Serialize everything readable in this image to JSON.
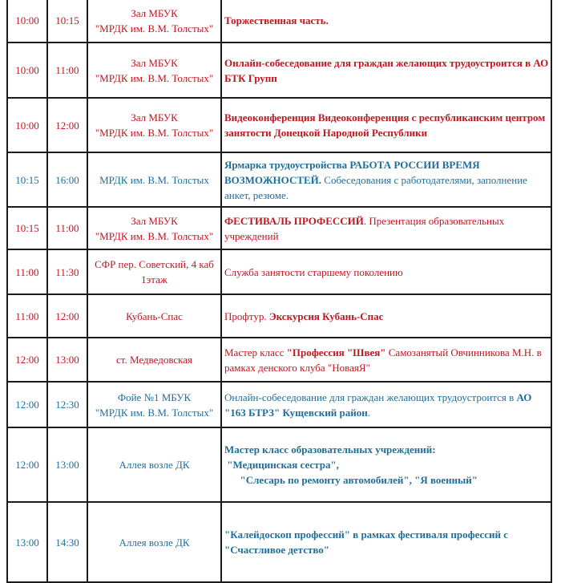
{
  "colors": {
    "red": "#c0161f",
    "blue": "#1f6e98",
    "border": "#1a1a1a"
  },
  "rows": [
    {
      "start": "10:00",
      "end": "10:15",
      "place": "Зал МБУК\n\"МРДК им. В.М. Толстых\"",
      "color": "red",
      "height": 55,
      "description": [
        {
          "text": "Торжественная часть.",
          "bold": true
        }
      ]
    },
    {
      "start": "10:00",
      "end": "11:00",
      "place": "Зал МБУК\n\"МРДК им. В.М. Толстых\"",
      "color": "red",
      "height": 69,
      "description": [
        {
          "text": "Онлайн-собеседование для граждан желающих трудоустроится в АО БТК Групп",
          "bold": true
        }
      ]
    },
    {
      "start": "10:00",
      "end": "12:00",
      "place": "Зал МБУК\n\"МРДК им. В.М. Толстых\"",
      "color": "red",
      "height": 68,
      "description": [
        {
          "text": "Видеоконференция Видеоконференция с республиканским центром занятости Донецкой Народной Республики",
          "bold": true
        }
      ]
    },
    {
      "start": "10:15",
      "end": "16:00",
      "place": "МРДК им. В.М. Толстых",
      "color": "blue",
      "height": 68,
      "description": [
        {
          "text": "Ярмарка трудоустройства РАБОТА РОССИИ ВРЕМЯ ВОЗМОЖНОСТЕЙ.",
          "bold": true
        },
        {
          "text": " Собеседования с работодателями, заполнение анкет, резюме.",
          "bold": false
        }
      ]
    },
    {
      "start": "10:15",
      "end": "11:00",
      "place": "Зал МБУК\n\"МРДК им. В.М. Толстых\"",
      "color": "red",
      "height": 53,
      "description": [
        {
          "text": "ФЕСТИВАЛЬ ПРОФЕССИЙ",
          "bold": true
        },
        {
          "text": ". Презентация образовательных учреждений",
          "bold": false
        }
      ]
    },
    {
      "start": "11:00",
      "end": "11:30",
      "place": "СФР пер. Советский, 4 каб\n1этаж",
      "color": "red",
      "height": 56,
      "description": [
        {
          "text": "Служба занятости старшему поколению",
          "bold": false
        }
      ]
    },
    {
      "start": "11:00",
      "end": "12:00",
      "place": "Кубань-Спас",
      "color": "red",
      "height": 54,
      "description": [
        {
          "text": "Профтур. ",
          "bold": false
        },
        {
          "text": "Экскурсия  Кубань-Спас",
          "bold": true
        }
      ]
    },
    {
      "start": "12:00",
      "end": "13:00",
      "place": "ст. Медведовская",
      "color": "red",
      "height": 55,
      "description": [
        {
          "text": "Мастер класс ",
          "bold": false
        },
        {
          "text": "\"Профессия \"Швея\"",
          "bold": true
        },
        {
          "text": " Самозанятый Овчинникова М.Н. в рамках денского клуба \"НоваяЯ\"",
          "bold": false
        }
      ]
    },
    {
      "start": "12:00",
      "end": "12:30",
      "place": "Фойе №1 МБУК\n\"МРДК им. В.М. Толстых\"",
      "color": "blue",
      "height": 57,
      "description": [
        {
          "text": "Онлайн-собеседование для граждан желающих трудоустроится в ",
          "bold": false
        },
        {
          "text": "АО \"163 БТРЗ\" Кущевский район",
          "bold": true
        },
        {
          "text": ".",
          "bold": false
        }
      ]
    },
    {
      "start": "12:00",
      "end": "13:00",
      "place": "Аллея возле ДК",
      "color": "blue",
      "height": 93,
      "description": [
        {
          "text": "Мастер класс образовательных учреждений:\n \"Медицинская сестра\",\n      \"Слесарь по ремонту автомобилей\", \"Я военный\"",
          "bold": true
        }
      ]
    },
    {
      "start": "13:00",
      "end": "14:30",
      "place": "Аллея возле ДК",
      "color": "blue",
      "height": 100,
      "description": [
        {
          "text": "\"Калейдоскоп профессий\" в рамках фестиваля профессий с \"Счастливое детство\"",
          "bold": true
        }
      ]
    }
  ]
}
